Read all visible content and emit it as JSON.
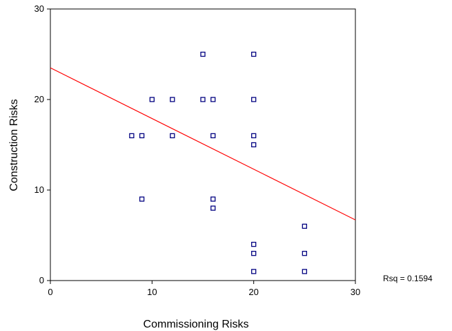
{
  "chart_data": {
    "type": "scatter",
    "title": "",
    "xlabel": "Commissioning Risks",
    "ylabel": "Construction Risks",
    "xlim": [
      0,
      30
    ],
    "ylim": [
      0,
      30
    ],
    "xticks": [
      0,
      10,
      20,
      30
    ],
    "yticks": [
      0,
      10,
      20,
      30
    ],
    "grid": false,
    "marker_color": "#000080",
    "line_color": "#ff0000",
    "points": [
      {
        "x": 8,
        "y": 16
      },
      {
        "x": 9,
        "y": 16
      },
      {
        "x": 9,
        "y": 9
      },
      {
        "x": 10,
        "y": 20
      },
      {
        "x": 12,
        "y": 20
      },
      {
        "x": 12,
        "y": 16
      },
      {
        "x": 15,
        "y": 25
      },
      {
        "x": 15,
        "y": 20
      },
      {
        "x": 16,
        "y": 20
      },
      {
        "x": 16,
        "y": 16
      },
      {
        "x": 16,
        "y": 9
      },
      {
        "x": 16,
        "y": 8
      },
      {
        "x": 20,
        "y": 25
      },
      {
        "x": 20,
        "y": 20
      },
      {
        "x": 20,
        "y": 16
      },
      {
        "x": 20,
        "y": 15
      },
      {
        "x": 20,
        "y": 4
      },
      {
        "x": 20,
        "y": 3
      },
      {
        "x": 20,
        "y": 1
      },
      {
        "x": 25,
        "y": 6
      },
      {
        "x": 25,
        "y": 3
      },
      {
        "x": 25,
        "y": 1
      }
    ],
    "fit_line": {
      "x": [
        0,
        30
      ],
      "y": [
        23.5,
        6.7
      ]
    },
    "annotation": "Rsq = 0.1594"
  }
}
